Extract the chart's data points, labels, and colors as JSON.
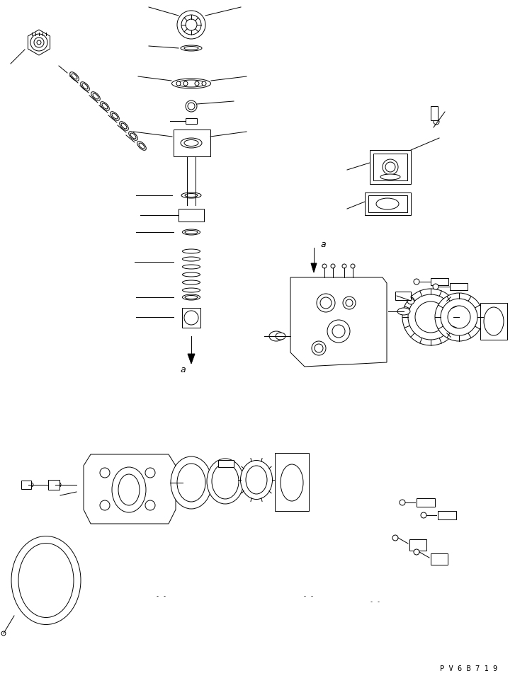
{
  "bg_color": "#ffffff",
  "line_color": "#000000",
  "fig_width": 7.27,
  "fig_height": 9.58,
  "dpi": 100,
  "watermark": "P V 6 B 7 1 9",
  "label_a1": "a",
  "label_a2": "a"
}
